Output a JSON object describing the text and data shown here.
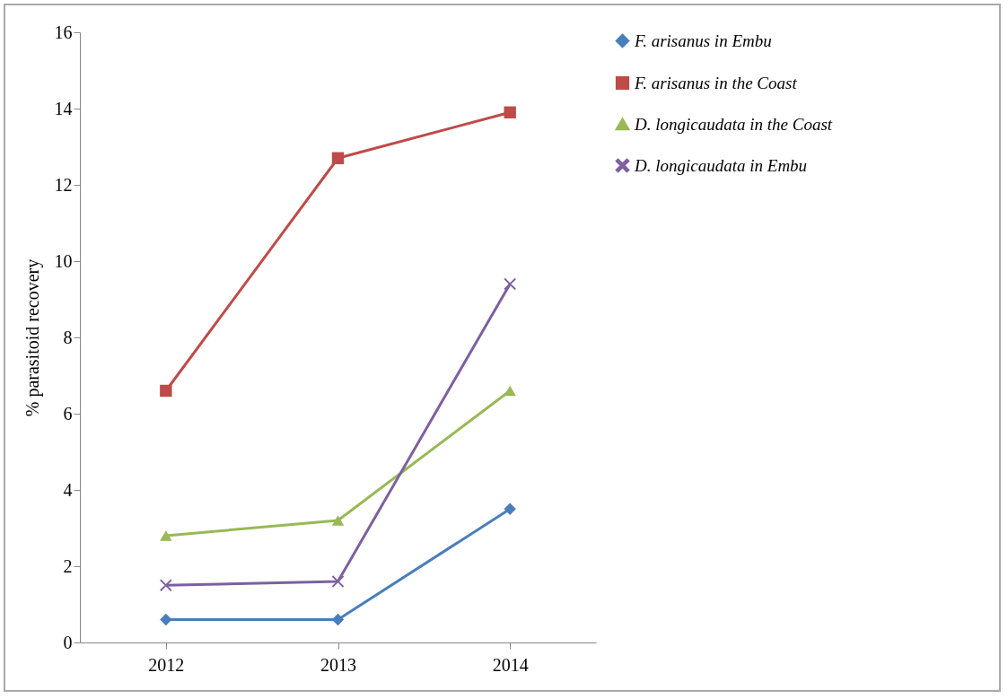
{
  "chart_data": {
    "type": "line",
    "ylabel": "% parasitoid recovery",
    "categories": [
      "2012",
      "2013",
      "2014"
    ],
    "series": [
      {
        "name": "F. arisanus in Embu",
        "color": "#4a7ebb",
        "marker": "diamond",
        "values": [
          0.6,
          0.6,
          3.5
        ]
      },
      {
        "name": "F. arisanus in the Coast",
        "color": "#be4b48",
        "marker": "square",
        "values": [
          6.6,
          12.7,
          13.9
        ]
      },
      {
        "name": "D. longicaudata in the Coast",
        "color": "#98b954",
        "marker": "triangle",
        "values": [
          2.8,
          3.2,
          6.6
        ]
      },
      {
        "name": "D. longicaudata in Embu",
        "color": "#7d60a0",
        "marker": "cross",
        "values": [
          1.5,
          1.6,
          9.4
        ]
      }
    ],
    "ylim": [
      0,
      16
    ],
    "yticks": [
      0,
      2,
      4,
      6,
      8,
      10,
      12,
      14,
      16
    ],
    "grid": false,
    "legend": "right"
  }
}
